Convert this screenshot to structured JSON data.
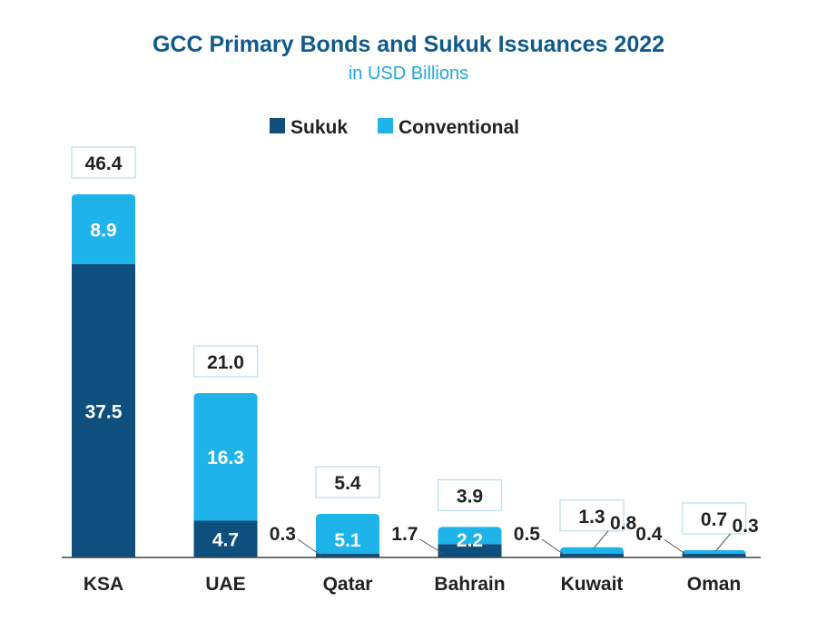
{
  "chart_data": {
    "type": "bar",
    "stacked": true,
    "title": "GCC Primary Bonds and Sukuk Issuances 2022",
    "subtitle": "in USD Billions",
    "categories": [
      "KSA",
      "UAE",
      "Qatar",
      "Bahrain",
      "Kuwait",
      "Oman"
    ],
    "series": [
      {
        "name": "Sukuk",
        "values": [
          37.5,
          4.7,
          0.3,
          1.7,
          0.5,
          0.4
        ]
      },
      {
        "name": "Conventional",
        "values": [
          8.9,
          16.3,
          5.1,
          2.2,
          0.8,
          0.3
        ]
      }
    ],
    "value_labels": {
      "Sukuk": [
        "37.5",
        "4.7",
        "0.3",
        "1.7",
        "0.5",
        "0.4"
      ],
      "Conventional": [
        "8.9",
        "16.3",
        "5.1",
        "2.2",
        "0.8",
        "0.3"
      ]
    },
    "totals": [
      "46.4",
      "21.0",
      "5.4",
      "3.9",
      "1.3",
      "0.7"
    ],
    "ylim": [
      0,
      46.4
    ],
    "legend_position": "top-center",
    "grid": false,
    "colors": {
      "Sukuk": "#0f4f7e",
      "Conventional": "#1eb4ea",
      "title": "#0f5a8c",
      "subtitle": "#1fa8df",
      "text": "#222222",
      "box": "#c6e4ee",
      "axis": "#444444"
    }
  }
}
